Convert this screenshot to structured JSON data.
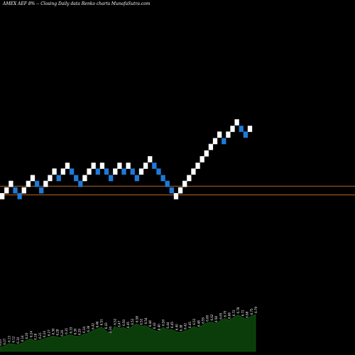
{
  "chart_data": {
    "type": "renko",
    "title": "AMEX AEF 8% -- Closing Daily data Renko charts MunafaSutra.com",
    "colors": {
      "up": "#ffffff",
      "down": "#1e7ad8",
      "reference_line": "#b5651d",
      "volume_fill": "#0b3d0b",
      "volume_line": "#0f6a0f",
      "background": "#000000"
    },
    "reference_levels": [
      6.35,
      6.23
    ],
    "brick_directions": [
      "u",
      "u",
      "u",
      "d",
      "d",
      "u",
      "u",
      "u",
      "d",
      "d",
      "u",
      "u",
      "u",
      "d",
      "u",
      "u",
      "d",
      "d",
      "d",
      "u",
      "u",
      "u",
      "d",
      "u",
      "d",
      "d",
      "u",
      "u",
      "d",
      "u",
      "d",
      "d",
      "u",
      "u",
      "u",
      "d",
      "d",
      "d",
      "d",
      "d",
      "u",
      "u",
      "u",
      "u",
      "u",
      "u",
      "u",
      "u",
      "u",
      "u",
      "u",
      "d",
      "u",
      "u",
      "u",
      "d",
      "d",
      "u"
    ],
    "brick_levels": [
      6.17,
      6.25,
      6.34,
      6.25,
      6.17,
      6.25,
      6.34,
      6.42,
      6.34,
      6.25,
      6.34,
      6.42,
      6.51,
      6.42,
      6.51,
      6.59,
      6.51,
      6.42,
      6.34,
      6.42,
      6.51,
      6.59,
      6.51,
      6.59,
      6.51,
      6.42,
      6.51,
      6.59,
      6.51,
      6.59,
      6.51,
      6.42,
      6.51,
      6.59,
      6.68,
      6.59,
      6.51,
      6.42,
      6.34,
      6.25,
      6.17,
      6.25,
      6.34,
      6.42,
      6.51,
      6.59,
      6.68,
      6.76,
      6.85,
      6.93,
      7.02,
      6.93,
      7.02,
      7.1,
      7.19,
      7.1,
      7.02,
      7.1
    ],
    "volume_labels": [
      "6.05",
      "6.07",
      "6.13",
      "6.12",
      "6.10",
      "6.14",
      "6.20",
      "6.24",
      "6.18",
      "6.21",
      "6.24",
      "6.27",
      "6.30",
      "6.28",
      "6.26",
      "6.31",
      "6.33",
      "6.30",
      "6.29",
      "6.34",
      "6.36",
      "6.42",
      "6.46",
      "6.51",
      "6.43",
      "6.34",
      "6.52",
      "6.47",
      "6.50",
      "6.45",
      "6.52",
      "6.58",
      "6.52",
      "6.54",
      "6.48",
      "6.43",
      "6.40",
      "6.50",
      "6.44",
      "6.45",
      "6.40",
      "6.38",
      "6.42",
      "6.45",
      "6.52",
      "6.48",
      "6.55",
      "6.60",
      "6.62",
      "6.58",
      "6.65",
      "6.70",
      "6.66",
      "6.72",
      "6.78",
      "6.72",
      "6.68",
      "6.75",
      "6.79"
    ]
  }
}
